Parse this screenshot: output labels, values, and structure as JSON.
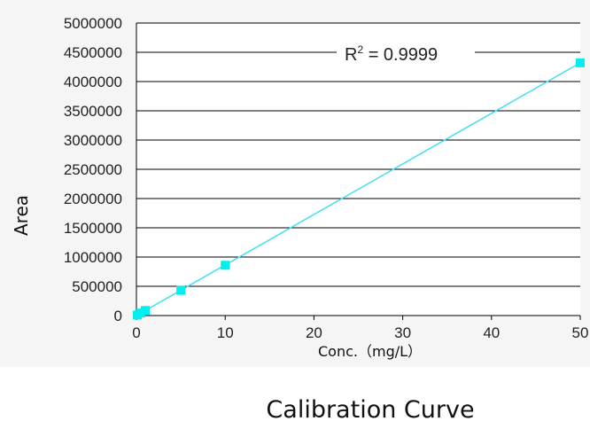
{
  "colors": {
    "line": "#40e0f0",
    "marker": "#00f0f0",
    "grid": "#000000",
    "panel": "#f5f5f5"
  },
  "chart_data": {
    "type": "scatter",
    "title": "Calibration Curve",
    "xlabel": "Conc.（mg/L）",
    "ylabel": "Area",
    "xlim": [
      0,
      50
    ],
    "ylim": [
      0,
      5000000
    ],
    "xticks": [
      0,
      10,
      20,
      30,
      40,
      50
    ],
    "yticks": [
      0,
      500000,
      1000000,
      1500000,
      2000000,
      2500000,
      3000000,
      3500000,
      4000000,
      4500000,
      5000000
    ],
    "grid": "horizontal",
    "series": [
      {
        "x": [
          0.1,
          0.5,
          1,
          5,
          10,
          50
        ],
        "y": [
          8600,
          43000,
          87000,
          430000,
          860000,
          4320000
        ]
      }
    ],
    "trendline": {
      "x": [
        0,
        50
      ],
      "y": [
        0,
        4320000
      ]
    },
    "annotation": {
      "prefix": "R",
      "sup": "2",
      "text": " = 0.9999"
    }
  }
}
